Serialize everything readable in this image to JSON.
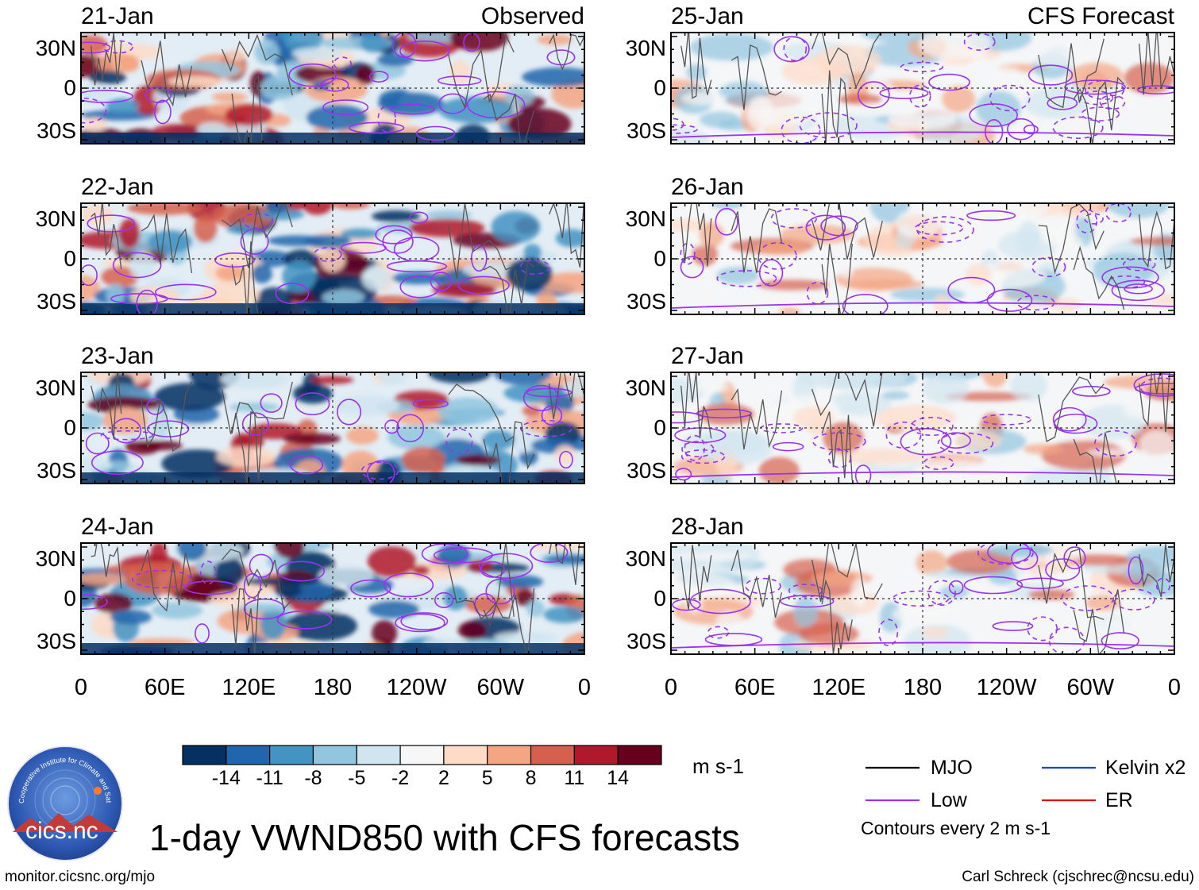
{
  "chart_data": {
    "type": "heatmap",
    "title": "1-day VWND850 with CFS forecasts",
    "variable": "VWND850",
    "units": "m s-1",
    "columns": [
      {
        "label": "Observed",
        "panels": [
          "21-Jan",
          "22-Jan",
          "23-Jan",
          "24-Jan"
        ]
      },
      {
        "label": "CFS Forecast",
        "panels": [
          "25-Jan",
          "26-Jan",
          "27-Jan",
          "28-Jan"
        ]
      }
    ],
    "y_ticks": [
      "30N",
      "0",
      "30S"
    ],
    "x_ticks": [
      "0",
      "60E",
      "120E",
      "180",
      "120W",
      "60W",
      "0"
    ],
    "colorbar": {
      "ticks": [
        "-14",
        "-11",
        "-8",
        "-5",
        "-2",
        "2",
        "5",
        "8",
        "11",
        "14"
      ],
      "colors": [
        "#053061",
        "#2166ac",
        "#4393c3",
        "#92c5de",
        "#d1e5f0",
        "#f7f7f7",
        "#fddbc7",
        "#f4a582",
        "#d6604d",
        "#b2182b",
        "#67001f"
      ]
    },
    "legend": [
      {
        "label": "MJO",
        "color": "#000000"
      },
      {
        "label": "Kelvin x2",
        "color": "#2040d0"
      },
      {
        "label": "Low",
        "color": "#9933ee"
      },
      {
        "label": "ER",
        "color": "#dd1111"
      }
    ],
    "contour_note": "Contours every 2 m s-1"
  },
  "logo_text": "cics.nc",
  "logo_ring_text": "Cooperative Institute for Climate and Satellites",
  "url": "monitor.cicsnc.org/mjo",
  "credit": "Carl Schreck (cjschrec@ncsu.edu)"
}
